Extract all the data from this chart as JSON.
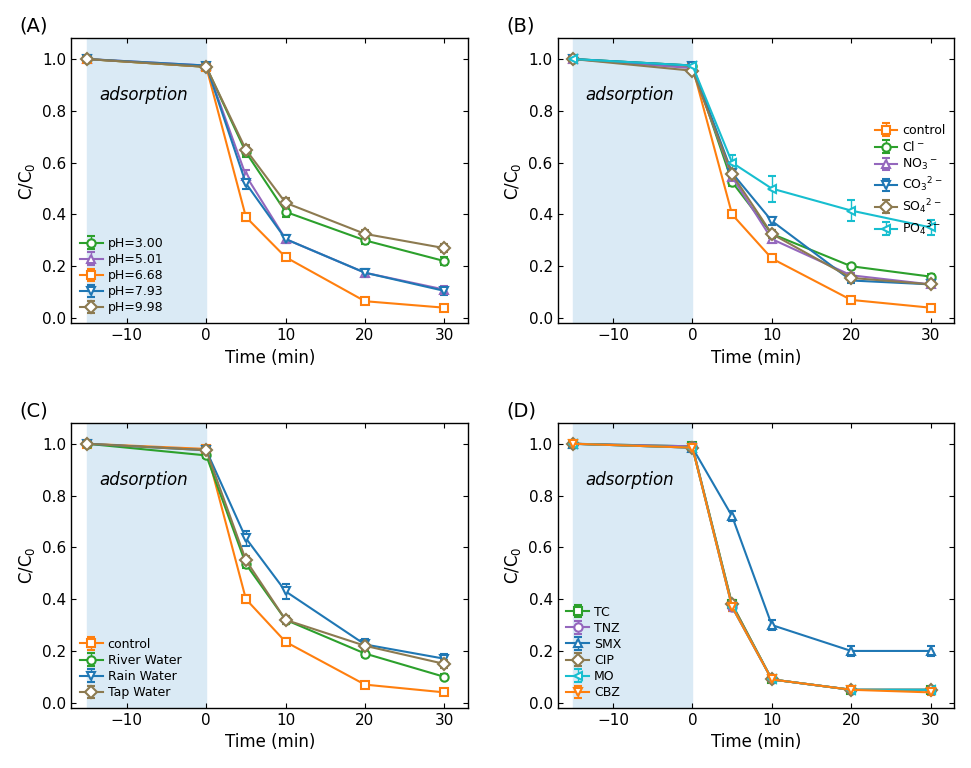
{
  "x_data": [
    -15,
    0,
    5,
    10,
    20,
    30
  ],
  "x_ticks": [
    -10,
    0,
    10,
    20,
    30
  ],
  "xlim": [
    -17,
    33
  ],
  "ylim": [
    -0.02,
    1.08
  ],
  "yticks": [
    0.0,
    0.2,
    0.4,
    0.6,
    0.8,
    1.0
  ],
  "xlabel": "Time (min)",
  "ylabel": "C/C$_0$",
  "adsorption_text": "adsorption",
  "panel_A": {
    "label": "(A)",
    "legend_loc": "lower left",
    "legend_bbox": null,
    "series": [
      {
        "name": "pH=3.00",
        "color": "#2ca02c",
        "marker": "o",
        "y": [
          1.0,
          0.97,
          0.64,
          0.41,
          0.3,
          0.22
        ],
        "yerr": [
          0.01,
          0.01,
          0.02,
          0.02,
          0.015,
          0.015
        ]
      },
      {
        "name": "pH=5.01",
        "color": "#9467bd",
        "marker": "^",
        "y": [
          1.0,
          0.975,
          0.55,
          0.305,
          0.175,
          0.11
        ],
        "yerr": [
          0.01,
          0.01,
          0.02,
          0.015,
          0.015,
          0.015
        ]
      },
      {
        "name": "pH=6.68",
        "color": "#ff7f0e",
        "marker": "s",
        "y": [
          1.0,
          0.97,
          0.39,
          0.235,
          0.065,
          0.04
        ],
        "yerr": [
          0.01,
          0.01,
          0.015,
          0.01,
          0.01,
          0.01
        ]
      },
      {
        "name": "pH=7.93",
        "color": "#1f77b4",
        "marker": "v",
        "y": [
          1.0,
          0.975,
          0.52,
          0.305,
          0.175,
          0.105
        ],
        "yerr": [
          0.01,
          0.01,
          0.02,
          0.015,
          0.015,
          0.015
        ]
      },
      {
        "name": "pH=9.98",
        "color": "#8c7a50",
        "marker": "D",
        "y": [
          1.0,
          0.97,
          0.65,
          0.445,
          0.325,
          0.27
        ],
        "yerr": [
          0.01,
          0.01,
          0.02,
          0.02,
          0.015,
          0.015
        ]
      }
    ]
  },
  "panel_B": {
    "label": "(B)",
    "legend_loc": "upper right",
    "legend_bbox": null,
    "series": [
      {
        "name": "control",
        "color": "#ff7f0e",
        "marker": "s",
        "y": [
          1.0,
          0.97,
          0.4,
          0.23,
          0.07,
          0.04
        ],
        "yerr": [
          0.01,
          0.01,
          0.015,
          0.015,
          0.01,
          0.01
        ]
      },
      {
        "name": "Cl$^-$",
        "color": "#2ca02c",
        "marker": "o",
        "y": [
          1.0,
          0.975,
          0.525,
          0.325,
          0.2,
          0.16
        ],
        "yerr": [
          0.01,
          0.01,
          0.015,
          0.015,
          0.01,
          0.01
        ]
      },
      {
        "name": "NO$_3$$^-$",
        "color": "#9467bd",
        "marker": "^",
        "y": [
          1.0,
          0.965,
          0.545,
          0.305,
          0.165,
          0.13
        ],
        "yerr": [
          0.01,
          0.01,
          0.015,
          0.015,
          0.01,
          0.01
        ]
      },
      {
        "name": "CO$_3$$^{2-}$",
        "color": "#1f77b4",
        "marker": "v",
        "y": [
          1.0,
          0.975,
          0.56,
          0.375,
          0.145,
          0.13
        ],
        "yerr": [
          0.01,
          0.01,
          0.015,
          0.015,
          0.01,
          0.01
        ]
      },
      {
        "name": "SO$_4$$^{2-}$",
        "color": "#8c7a50",
        "marker": "D",
        "y": [
          1.0,
          0.955,
          0.555,
          0.325,
          0.155,
          0.13
        ],
        "yerr": [
          0.01,
          0.01,
          0.015,
          0.015,
          0.01,
          0.01
        ]
      },
      {
        "name": "PO$_4$$^{3-}$",
        "color": "#17becf",
        "marker": "<",
        "y": [
          1.0,
          0.975,
          0.6,
          0.5,
          0.415,
          0.35
        ],
        "yerr": [
          0.01,
          0.01,
          0.03,
          0.05,
          0.04,
          0.03
        ]
      }
    ]
  },
  "panel_C": {
    "label": "(C)",
    "legend_loc": "lower left",
    "legend_bbox": null,
    "series": [
      {
        "name": "control",
        "color": "#ff7f0e",
        "marker": "s",
        "y": [
          1.0,
          0.98,
          0.4,
          0.235,
          0.07,
          0.04
        ],
        "yerr": [
          0.01,
          0.01,
          0.015,
          0.015,
          0.01,
          0.01
        ]
      },
      {
        "name": "River Water",
        "color": "#2ca02c",
        "marker": "o",
        "y": [
          1.0,
          0.955,
          0.535,
          0.32,
          0.19,
          0.1
        ],
        "yerr": [
          0.01,
          0.01,
          0.015,
          0.015,
          0.015,
          0.01
        ]
      },
      {
        "name": "Rain Water",
        "color": "#1f77b4",
        "marker": "v",
        "y": [
          1.0,
          0.975,
          0.635,
          0.43,
          0.225,
          0.17
        ],
        "yerr": [
          0.01,
          0.01,
          0.03,
          0.03,
          0.02,
          0.02
        ]
      },
      {
        "name": "Tap Water",
        "color": "#8c7a50",
        "marker": "D",
        "y": [
          1.0,
          0.975,
          0.55,
          0.32,
          0.22,
          0.15
        ],
        "yerr": [
          0.01,
          0.01,
          0.015,
          0.015,
          0.015,
          0.015
        ]
      }
    ]
  },
  "panel_D": {
    "label": "(D)",
    "legend_loc": "lower left",
    "legend_bbox": null,
    "series": [
      {
        "name": "TC",
        "color": "#2ca02c",
        "marker": "s",
        "y": [
          1.0,
          0.99,
          0.38,
          0.09,
          0.05,
          0.05
        ],
        "yerr": [
          0.01,
          0.01,
          0.015,
          0.01,
          0.01,
          0.01
        ]
      },
      {
        "name": "TNZ",
        "color": "#9467bd",
        "marker": "o",
        "y": [
          1.0,
          0.99,
          0.37,
          0.09,
          0.05,
          0.05
        ],
        "yerr": [
          0.01,
          0.01,
          0.015,
          0.01,
          0.01,
          0.01
        ]
      },
      {
        "name": "SMX",
        "color": "#1f77b4",
        "marker": "^",
        "y": [
          1.0,
          0.985,
          0.72,
          0.3,
          0.2,
          0.2
        ],
        "yerr": [
          0.01,
          0.01,
          0.02,
          0.02,
          0.02,
          0.02
        ]
      },
      {
        "name": "CIP",
        "color": "#8c7a50",
        "marker": "D",
        "y": [
          1.0,
          0.985,
          0.38,
          0.09,
          0.05,
          0.05
        ],
        "yerr": [
          0.01,
          0.01,
          0.015,
          0.01,
          0.01,
          0.01
        ]
      },
      {
        "name": "MO",
        "color": "#17becf",
        "marker": "<",
        "y": [
          1.0,
          0.985,
          0.37,
          0.09,
          0.05,
          0.05
        ],
        "yerr": [
          0.01,
          0.01,
          0.015,
          0.01,
          0.01,
          0.01
        ]
      },
      {
        "name": "CBZ",
        "color": "#ff7f0e",
        "marker": "v",
        "y": [
          1.0,
          0.985,
          0.37,
          0.09,
          0.05,
          0.04
        ],
        "yerr": [
          0.01,
          0.01,
          0.015,
          0.01,
          0.01,
          0.01
        ]
      }
    ]
  }
}
